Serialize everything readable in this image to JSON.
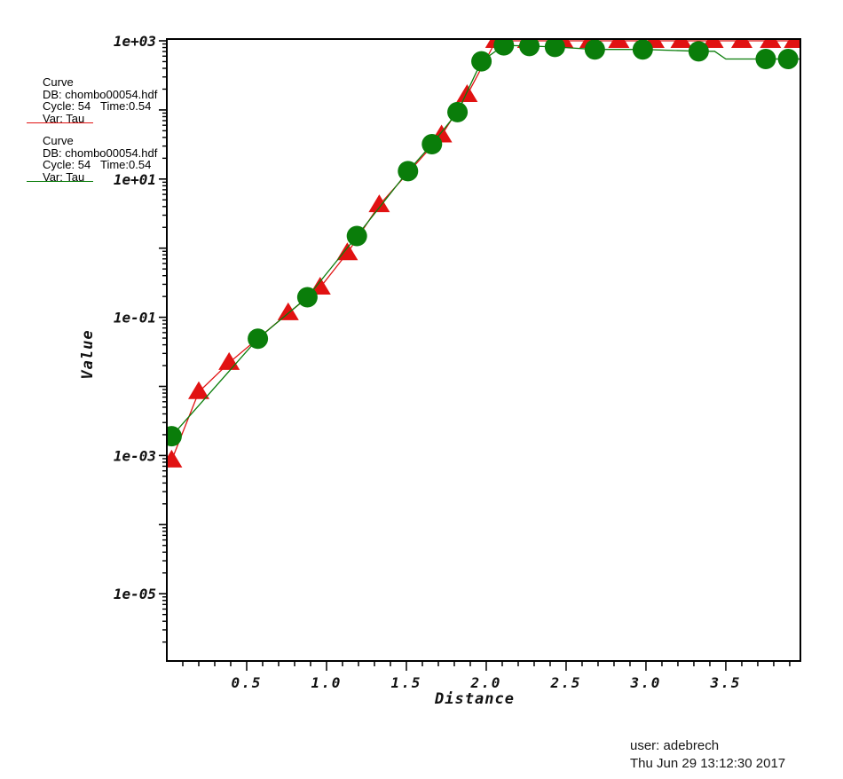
{
  "window": {
    "background": "#ffffff"
  },
  "legend": {
    "entries": [
      {
        "title": "Curve",
        "db": "DB: chombo00054.hdf",
        "cycle": "Cycle: 54",
        "time": "Time:0.54",
        "var": "Var: Tau",
        "color": "#e11212"
      },
      {
        "title": "Curve",
        "db": "DB: chombo00054.hdf",
        "cycle": "Cycle: 54",
        "time": "Time:0.54",
        "var": "Var: Tau",
        "color": "#0a7d0a"
      }
    ]
  },
  "chart_data": {
    "type": "line",
    "title": "",
    "xlabel": "Distance",
    "ylabel": "Value",
    "grid": false,
    "legend_position": "top-left",
    "x_axis": {
      "min": 0,
      "max": 3.967,
      "minor_tick_step": 0.1,
      "major_ticks": [
        0.5,
        1.0,
        1.5,
        2.0,
        2.5,
        3.0,
        3.5
      ],
      "major_tick_labels": [
        "0.5",
        "1.0",
        "1.5",
        "2.0",
        "2.5",
        "3.0",
        "3.5"
      ]
    },
    "y_axis": {
      "scale": "log",
      "min": 1e-06,
      "max": 1000,
      "labeled_exponents": [
        3,
        1,
        -1,
        -3,
        -5
      ],
      "labels": [
        "1e+03",
        "1e+01",
        "1e-01",
        "1e-03",
        "1e-05"
      ]
    },
    "series": [
      {
        "name": "Tau (curve 1)",
        "color": "#e11212",
        "marker": "triangle",
        "points": [
          [
            0.03,
            0.00085
          ],
          [
            0.2,
            0.0083
          ],
          [
            0.39,
            0.022
          ],
          [
            0.76,
            0.115
          ],
          [
            0.96,
            0.27
          ],
          [
            1.13,
            0.85
          ],
          [
            1.33,
            4.2
          ],
          [
            1.72,
            43
          ],
          [
            1.88,
            165
          ],
          [
            2.06,
            1000
          ],
          [
            2.26,
            1000
          ],
          [
            2.48,
            1000
          ],
          [
            2.65,
            1000
          ],
          [
            2.83,
            1000
          ],
          [
            3.05,
            1000
          ],
          [
            3.22,
            1000
          ],
          [
            3.42,
            1000
          ],
          [
            3.6,
            1000
          ],
          [
            3.78,
            1000
          ],
          [
            3.93,
            1000
          ]
        ]
      },
      {
        "name": "Tau (curve 2)",
        "color": "#0a7d0a",
        "marker": "circle",
        "points": [
          [
            0.03,
            0.0019
          ],
          [
            0.57,
            0.049
          ],
          [
            0.88,
            0.195
          ],
          [
            1.19,
            1.5
          ],
          [
            1.51,
            13
          ],
          [
            1.66,
            32
          ],
          [
            1.82,
            93
          ],
          [
            1.97,
            505
          ],
          [
            2.11,
            860
          ],
          [
            2.27,
            840
          ],
          [
            2.43,
            815
          ],
          [
            2.68,
            750
          ],
          [
            2.98,
            750
          ],
          [
            3.33,
            705
          ],
          [
            3.75,
            545
          ],
          [
            3.89,
            545
          ]
        ],
        "line_points": [
          [
            0.03,
            0.0019
          ],
          [
            0.57,
            0.049
          ],
          [
            0.88,
            0.195
          ],
          [
            1.19,
            1.5
          ],
          [
            1.51,
            13
          ],
          [
            1.66,
            32
          ],
          [
            1.82,
            93
          ],
          [
            1.97,
            505
          ],
          [
            2.11,
            860
          ],
          [
            2.27,
            840
          ],
          [
            2.43,
            815
          ],
          [
            2.68,
            750
          ],
          [
            2.98,
            750
          ],
          [
            3.33,
            705
          ],
          [
            3.43,
            705
          ],
          [
            3.5,
            545
          ],
          [
            3.75,
            545
          ],
          [
            3.89,
            545
          ],
          [
            3.967,
            545
          ]
        ]
      }
    ]
  },
  "footer": {
    "user_line": "user: adebrech",
    "timestamp": "Thu Jun 29 13:12:30 2017"
  }
}
